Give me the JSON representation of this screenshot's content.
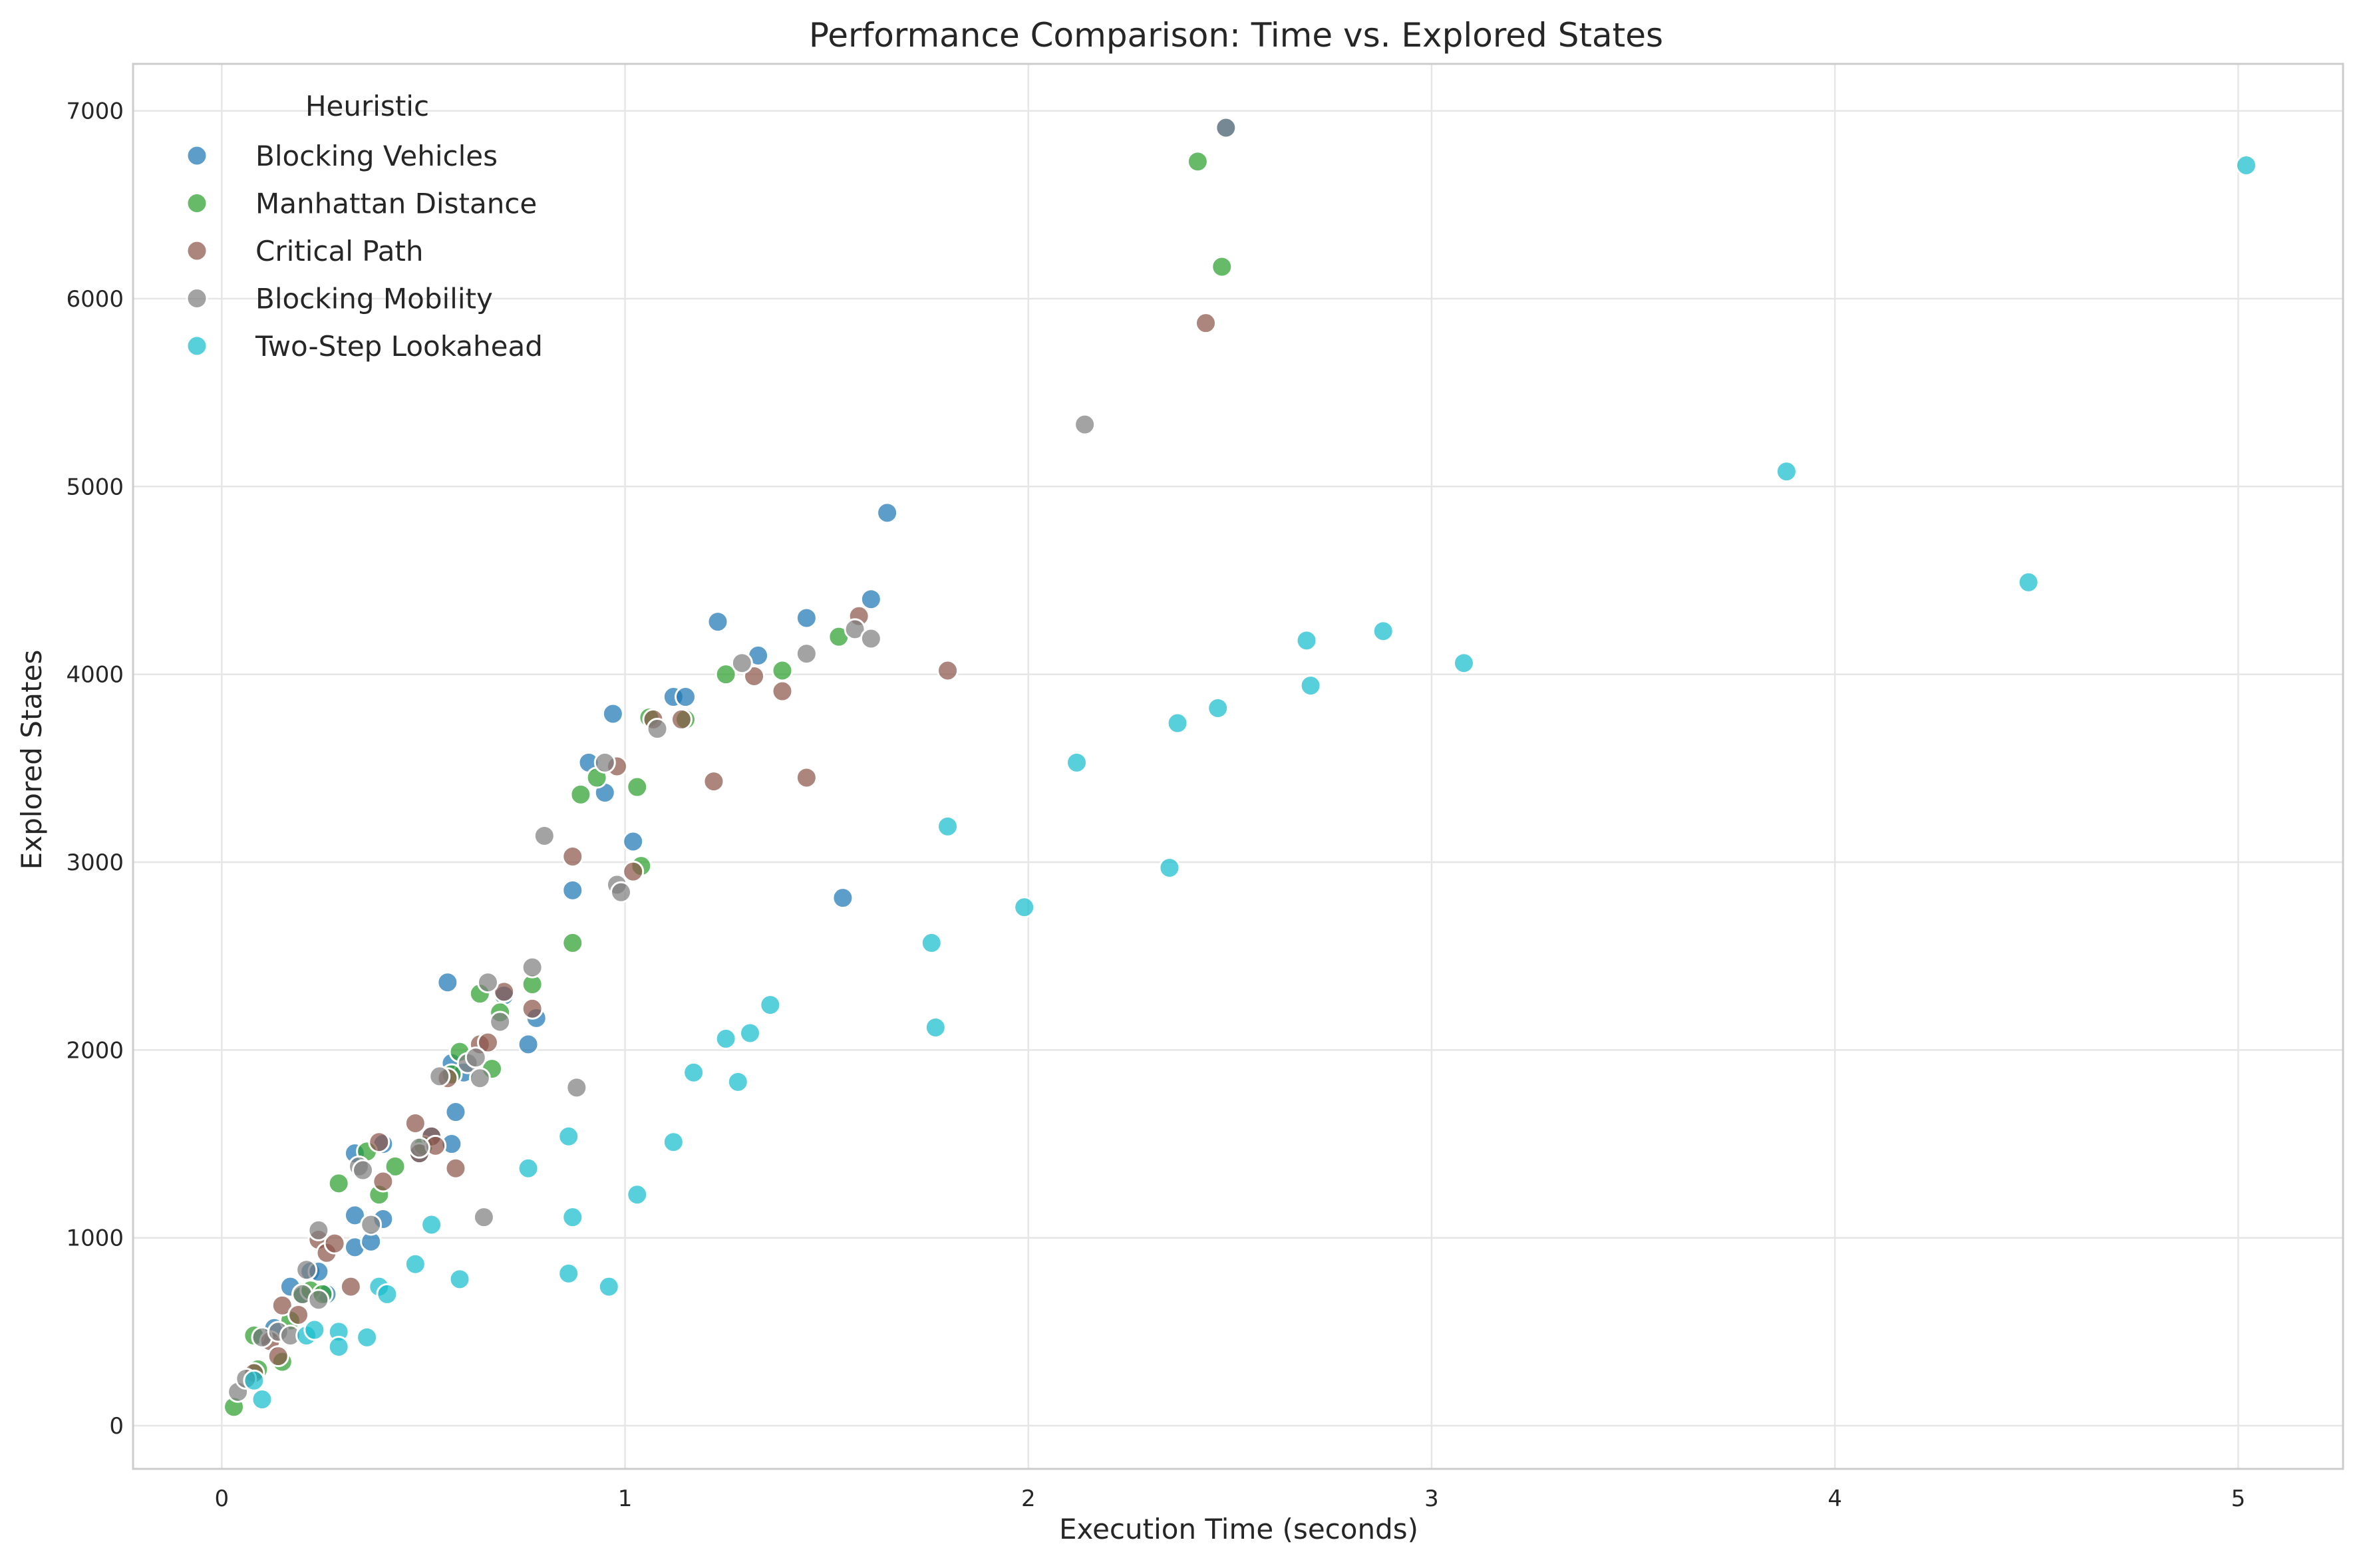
{
  "chart_data": {
    "type": "scatter",
    "title": "Performance Comparison: Time vs. Explored States",
    "xlabel": "Execution Time (seconds)",
    "ylabel": "Explored States",
    "xlim": [
      -0.22,
      5.26
    ],
    "ylim": [
      -230,
      7250
    ],
    "xticks": [
      0,
      1,
      2,
      3,
      4,
      5
    ],
    "yticks": [
      0,
      1000,
      2000,
      3000,
      4000,
      5000,
      6000,
      7000
    ],
    "grid": true,
    "legend_title": "Heuristic",
    "legend_placement": "top-left",
    "series": [
      {
        "name": "Blocking Vehicles",
        "color": "#1f77b4",
        "points": [
          [
            0.1,
            480
          ],
          [
            0.13,
            520
          ],
          [
            0.17,
            740
          ],
          [
            0.2,
            700
          ],
          [
            0.22,
            820
          ],
          [
            0.24,
            820
          ],
          [
            0.26,
            700
          ],
          [
            0.33,
            1450
          ],
          [
            0.33,
            1120
          ],
          [
            0.33,
            950
          ],
          [
            0.37,
            980
          ],
          [
            0.4,
            1100
          ],
          [
            0.4,
            1500
          ],
          [
            0.49,
            1450
          ],
          [
            0.52,
            1540
          ],
          [
            0.56,
            2360
          ],
          [
            0.57,
            1500
          ],
          [
            0.57,
            1930
          ],
          [
            0.58,
            1670
          ],
          [
            0.6,
            1880
          ],
          [
            0.7,
            2290
          ],
          [
            0.76,
            2030
          ],
          [
            0.78,
            2170
          ],
          [
            0.87,
            2850
          ],
          [
            0.91,
            3530
          ],
          [
            0.95,
            3370
          ],
          [
            0.97,
            3790
          ],
          [
            1.02,
            3110
          ],
          [
            1.12,
            3880
          ],
          [
            1.15,
            3880
          ],
          [
            1.23,
            4280
          ],
          [
            1.33,
            4100
          ],
          [
            1.45,
            4300
          ],
          [
            1.54,
            2810
          ],
          [
            1.61,
            4400
          ],
          [
            1.65,
            4860
          ],
          [
            2.49,
            6910
          ]
        ]
      },
      {
        "name": "Manhattan Distance",
        "color": "#2ca02c",
        "points": [
          [
            0.03,
            100
          ],
          [
            0.08,
            480
          ],
          [
            0.09,
            300
          ],
          [
            0.15,
            340
          ],
          [
            0.17,
            560
          ],
          [
            0.2,
            690
          ],
          [
            0.22,
            720
          ],
          [
            0.25,
            700
          ],
          [
            0.29,
            1290
          ],
          [
            0.36,
            1460
          ],
          [
            0.39,
            1230
          ],
          [
            0.43,
            1380
          ],
          [
            0.5,
            1490
          ],
          [
            0.57,
            1870
          ],
          [
            0.59,
            1990
          ],
          [
            0.64,
            2300
          ],
          [
            0.67,
            1900
          ],
          [
            0.69,
            2200
          ],
          [
            0.77,
            2350
          ],
          [
            0.87,
            2570
          ],
          [
            0.89,
            3360
          ],
          [
            0.93,
            3450
          ],
          [
            1.03,
            3400
          ],
          [
            1.04,
            2980
          ],
          [
            1.06,
            3770
          ],
          [
            1.15,
            3760
          ],
          [
            1.25,
            4000
          ],
          [
            1.39,
            4020
          ],
          [
            1.53,
            4200
          ],
          [
            2.42,
            6730
          ],
          [
            2.48,
            6170
          ]
        ]
      },
      {
        "name": "Critical Path",
        "color": "#8c564b",
        "points": [
          [
            0.08,
            280
          ],
          [
            0.12,
            450
          ],
          [
            0.14,
            370
          ],
          [
            0.15,
            640
          ],
          [
            0.19,
            590
          ],
          [
            0.24,
            990
          ],
          [
            0.26,
            920
          ],
          [
            0.28,
            970
          ],
          [
            0.32,
            740
          ],
          [
            0.39,
            1510
          ],
          [
            0.4,
            1300
          ],
          [
            0.48,
            1610
          ],
          [
            0.49,
            1450
          ],
          [
            0.52,
            1540
          ],
          [
            0.53,
            1490
          ],
          [
            0.56,
            1850
          ],
          [
            0.58,
            1370
          ],
          [
            0.64,
            2030
          ],
          [
            0.66,
            2040
          ],
          [
            0.7,
            2310
          ],
          [
            0.77,
            2220
          ],
          [
            0.87,
            3030
          ],
          [
            0.98,
            3510
          ],
          [
            1.02,
            2950
          ],
          [
            1.07,
            3760
          ],
          [
            1.14,
            3760
          ],
          [
            1.22,
            3430
          ],
          [
            1.32,
            3990
          ],
          [
            1.39,
            3910
          ],
          [
            1.45,
            3450
          ],
          [
            1.58,
            4310
          ],
          [
            1.8,
            4020
          ],
          [
            2.44,
            5870
          ]
        ]
      },
      {
        "name": "Blocking Mobility",
        "color": "#7f7f7f",
        "points": [
          [
            0.04,
            180
          ],
          [
            0.06,
            250
          ],
          [
            0.1,
            470
          ],
          [
            0.14,
            500
          ],
          [
            0.17,
            480
          ],
          [
            0.2,
            700
          ],
          [
            0.21,
            830
          ],
          [
            0.24,
            1040
          ],
          [
            0.24,
            670
          ],
          [
            0.34,
            1380
          ],
          [
            0.35,
            1360
          ],
          [
            0.37,
            1070
          ],
          [
            0.49,
            1480
          ],
          [
            0.54,
            1860
          ],
          [
            0.61,
            1930
          ],
          [
            0.63,
            1960
          ],
          [
            0.64,
            1850
          ],
          [
            0.65,
            1110
          ],
          [
            0.66,
            2360
          ],
          [
            0.69,
            2150
          ],
          [
            0.77,
            2440
          ],
          [
            0.8,
            3140
          ],
          [
            0.88,
            1800
          ],
          [
            0.95,
            3530
          ],
          [
            0.98,
            2880
          ],
          [
            0.99,
            2840
          ],
          [
            1.08,
            3710
          ],
          [
            1.29,
            4060
          ],
          [
            1.45,
            4110
          ],
          [
            1.57,
            4240
          ],
          [
            1.61,
            4190
          ],
          [
            2.14,
            5330
          ],
          [
            2.49,
            6910
          ]
        ]
      },
      {
        "name": "Two-Step Lookahead",
        "color": "#17becf",
        "points": [
          [
            0.08,
            240
          ],
          [
            0.1,
            140
          ],
          [
            0.21,
            480
          ],
          [
            0.23,
            510
          ],
          [
            0.29,
            500
          ],
          [
            0.29,
            420
          ],
          [
            0.36,
            470
          ],
          [
            0.39,
            740
          ],
          [
            0.41,
            700
          ],
          [
            0.48,
            860
          ],
          [
            0.52,
            1070
          ],
          [
            0.59,
            780
          ],
          [
            0.76,
            1370
          ],
          [
            0.86,
            1540
          ],
          [
            0.86,
            810
          ],
          [
            0.87,
            1110
          ],
          [
            0.96,
            740
          ],
          [
            1.03,
            1230
          ],
          [
            1.12,
            1510
          ],
          [
            1.17,
            1880
          ],
          [
            1.25,
            2060
          ],
          [
            1.28,
            1830
          ],
          [
            1.31,
            2090
          ],
          [
            1.36,
            2240
          ],
          [
            1.76,
            2570
          ],
          [
            1.77,
            2120
          ],
          [
            1.8,
            3190
          ],
          [
            1.99,
            2760
          ],
          [
            2.12,
            3530
          ],
          [
            2.35,
            2970
          ],
          [
            2.37,
            3740
          ],
          [
            2.47,
            3820
          ],
          [
            2.69,
            4180
          ],
          [
            2.7,
            3940
          ],
          [
            2.88,
            4230
          ],
          [
            3.08,
            4060
          ],
          [
            3.88,
            5080
          ],
          [
            4.48,
            4490
          ],
          [
            5.02,
            6710
          ]
        ]
      }
    ]
  }
}
